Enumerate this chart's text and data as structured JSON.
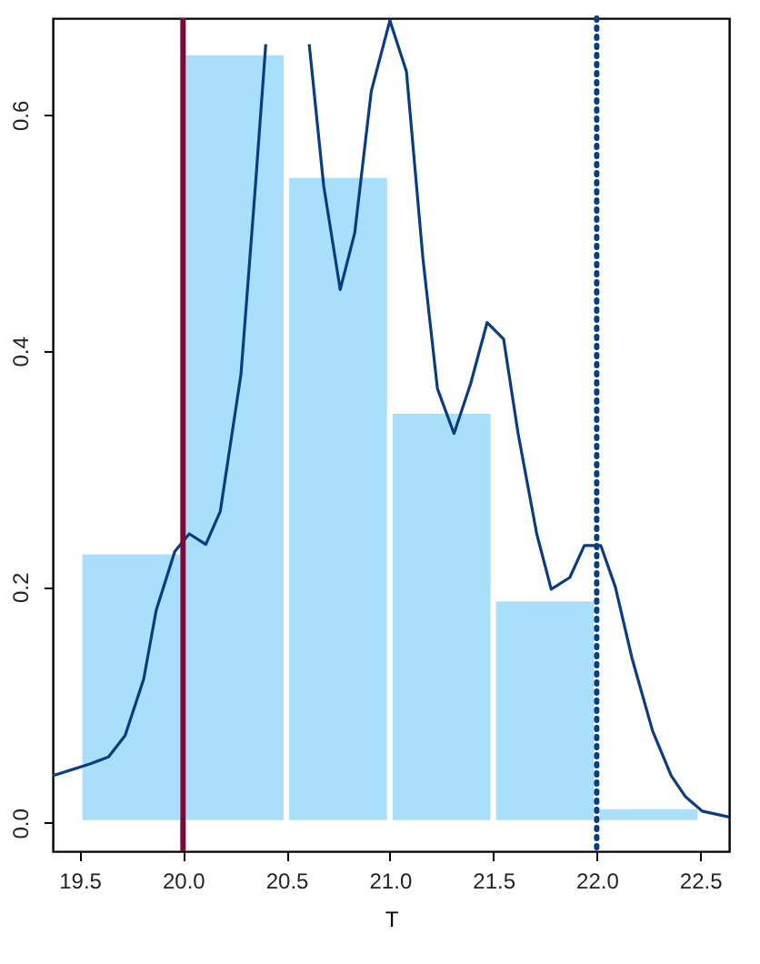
{
  "chart_data": {
    "type": "histogram",
    "xlabel": "T",
    "bins": [
      19.5,
      20.0,
      20.5,
      21.0,
      21.5,
      22.0,
      22.5
    ],
    "values": [
      0.23,
      0.653,
      0.549,
      0.349,
      0.19,
      0.014
    ],
    "color": "#aadffc",
    "series": [
      {
        "type": "line",
        "color": "#0a3d80",
        "x": [
          19.37,
          19.55,
          19.64,
          19.72,
          19.81,
          19.87,
          19.96,
          20.03,
          20.11,
          20.18,
          20.28,
          20.35,
          20.4,
          20.5,
          20.61,
          20.68,
          20.76,
          20.83,
          20.91,
          21.0,
          21.08,
          21.16,
          21.23,
          21.31,
          21.39,
          21.47,
          21.55,
          21.62,
          21.71,
          21.78,
          21.87,
          21.94,
          22.02,
          22.09,
          22.17,
          22.27,
          22.36,
          22.43,
          22.51,
          22.64
        ],
        "values": [
          0.04,
          0.05,
          0.056,
          0.074,
          0.122,
          0.18,
          0.23,
          0.245,
          0.236,
          0.264,
          0.38,
          0.54,
          0.66,
          null,
          0.66,
          0.54,
          0.452,
          0.5,
          0.62,
          0.68,
          0.637,
          0.478,
          0.368,
          0.33,
          0.372,
          0.424,
          0.41,
          0.33,
          0.245,
          0.198,
          0.208,
          0.235,
          0.235,
          0.2,
          0.14,
          0.078,
          0.04,
          0.022,
          0.01,
          0.005
        ]
      }
    ],
    "ref_lines": [
      {
        "axis": "x",
        "value": 20.0,
        "color": "#7a0a3c",
        "line_style": "solid"
      },
      {
        "axis": "x",
        "value": 22.0,
        "color": "#0a3d80",
        "line_style": "dotted"
      }
    ],
    "xlim": [
      19.37,
      22.64
    ],
    "ylim": [
      -0.024,
      0.682
    ],
    "xticks": [
      {
        "value": 19.5,
        "label": "19.5"
      },
      {
        "value": 20.0,
        "label": "20.0"
      },
      {
        "value": 20.5,
        "label": "20.5"
      },
      {
        "value": 21.0,
        "label": "21.0"
      },
      {
        "value": 21.5,
        "label": "21.5"
      },
      {
        "value": 22.0,
        "label": "22.0"
      },
      {
        "value": 22.5,
        "label": "22.5"
      }
    ],
    "yticks": [
      {
        "value": 0.0,
        "label": "0.0"
      },
      {
        "value": 0.2,
        "label": "0.2"
      },
      {
        "value": 0.4,
        "label": "0.4"
      },
      {
        "value": 0.6,
        "label": "0.6"
      }
    ],
    "grid": false
  }
}
